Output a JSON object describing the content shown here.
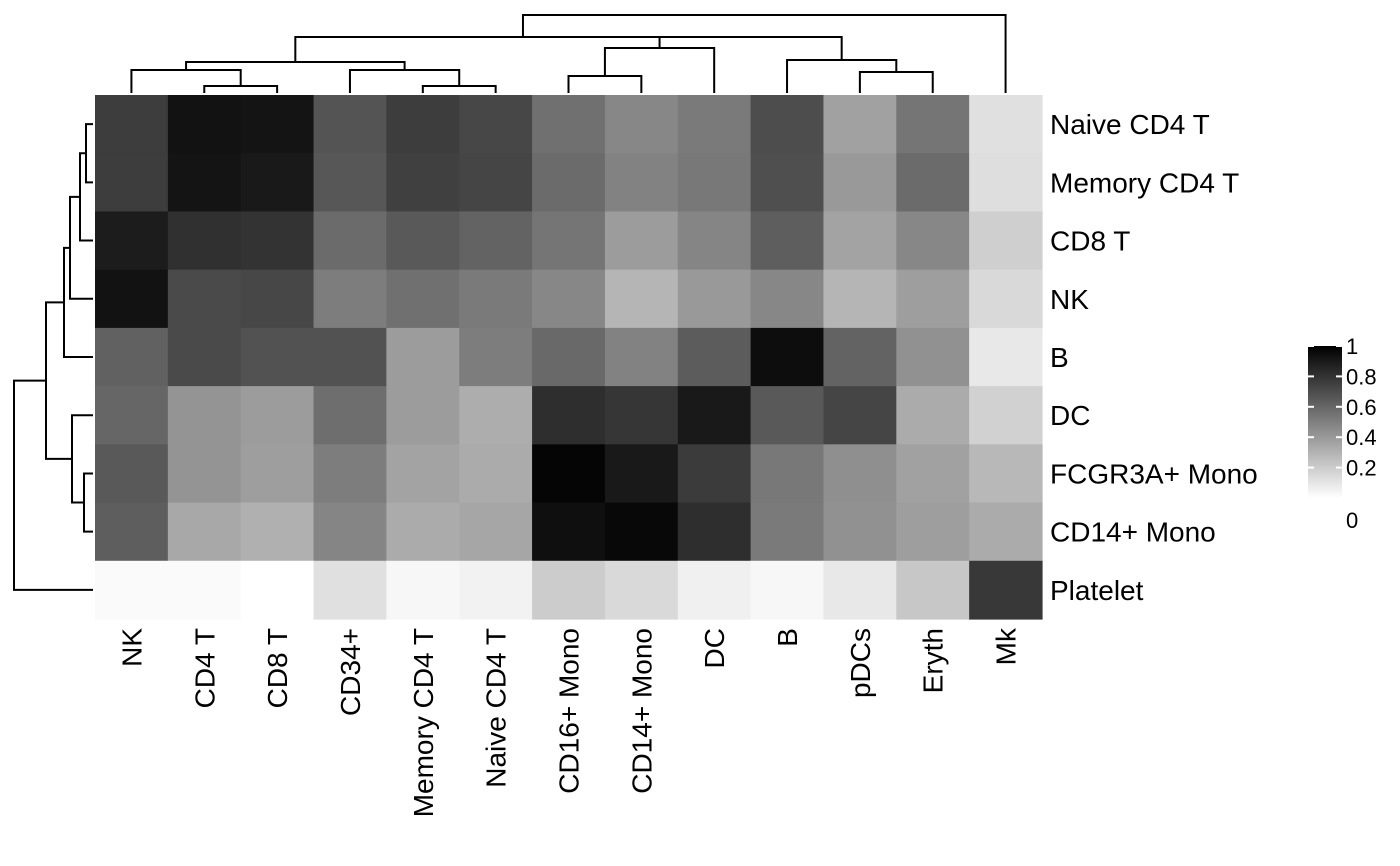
{
  "chart_data": {
    "type": "heatmap",
    "title": "",
    "xlabel": "",
    "ylabel": "",
    "columns": [
      "NK",
      "CD4 T",
      "CD8 T",
      "CD34+",
      "Memory CD4 T",
      "Naive CD4 T",
      "CD16+ Mono",
      "CD14+ Mono",
      "DC",
      "B",
      "pDCs",
      "Eryth",
      "Mk"
    ],
    "rows": [
      "Naive CD4 T",
      "Memory CD4 T",
      "CD8 T",
      "NK",
      "B",
      "DC",
      "FCGR3A+ Mono",
      "CD14+ Mono",
      "Platelet"
    ],
    "values": [
      [
        0.76,
        0.93,
        0.92,
        0.67,
        0.76,
        0.72,
        0.56,
        0.47,
        0.52,
        0.7,
        0.37,
        0.54,
        0.12
      ],
      [
        0.76,
        0.92,
        0.9,
        0.66,
        0.75,
        0.73,
        0.58,
        0.49,
        0.53,
        0.69,
        0.4,
        0.58,
        0.13
      ],
      [
        0.89,
        0.81,
        0.8,
        0.58,
        0.65,
        0.61,
        0.54,
        0.39,
        0.48,
        0.63,
        0.36,
        0.47,
        0.19
      ],
      [
        0.93,
        0.71,
        0.72,
        0.51,
        0.56,
        0.52,
        0.47,
        0.29,
        0.4,
        0.47,
        0.29,
        0.38,
        0.15
      ],
      [
        0.62,
        0.71,
        0.68,
        0.68,
        0.39,
        0.51,
        0.59,
        0.49,
        0.64,
        0.95,
        0.61,
        0.43,
        0.09
      ],
      [
        0.6,
        0.42,
        0.39,
        0.57,
        0.39,
        0.32,
        0.82,
        0.79,
        0.9,
        0.65,
        0.73,
        0.33,
        0.18
      ],
      [
        0.65,
        0.42,
        0.38,
        0.51,
        0.36,
        0.33,
        0.98,
        0.9,
        0.77,
        0.53,
        0.44,
        0.37,
        0.28
      ],
      [
        0.63,
        0.34,
        0.31,
        0.48,
        0.33,
        0.35,
        0.94,
        0.97,
        0.82,
        0.52,
        0.43,
        0.38,
        0.33
      ],
      [
        0.02,
        0.02,
        0.0,
        0.12,
        0.03,
        0.05,
        0.2,
        0.15,
        0.06,
        0.03,
        0.09,
        0.22,
        0.78
      ]
    ],
    "color_scale": {
      "min": 0,
      "max": 1,
      "low_color": "#ffffff",
      "high_color": "#000000"
    },
    "legend": {
      "position": "right",
      "ticks": [
        "0",
        "0.2",
        "0.4",
        "0.6",
        "0.8",
        "1"
      ]
    },
    "column_dendrogram": true,
    "row_dendrogram": true
  }
}
